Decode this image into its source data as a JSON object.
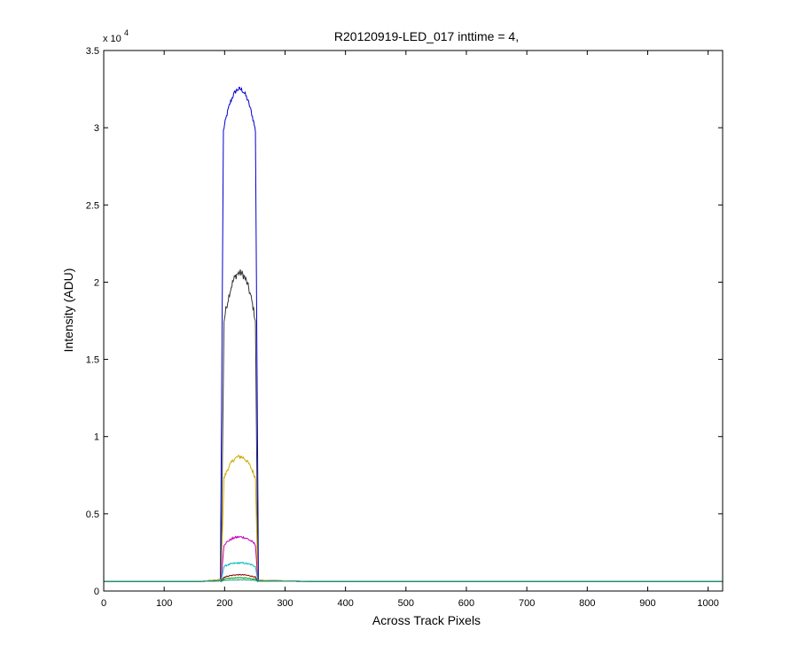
{
  "chart_data": {
    "type": "line",
    "title": "R20120919-LED_017 inttime = 4,",
    "xlabel": "Across Track Pixels",
    "ylabel": "Intensity (ADU)",
    "xlim": [
      0,
      1024
    ],
    "ylim": [
      0,
      35000
    ],
    "x_ticks": [
      0,
      100,
      200,
      300,
      400,
      500,
      600,
      700,
      800,
      900,
      1000
    ],
    "y_ticks": [
      0,
      5000,
      10000,
      15000,
      20000,
      25000,
      30000,
      35000
    ],
    "y_tick_labels": [
      "0",
      "0.5",
      "1",
      "1.5",
      "2",
      "2.5",
      "3",
      "3.5"
    ],
    "y_multiplier_base": "x 10",
    "y_multiplier_exp": "4",
    "grid": false,
    "legend": "none",
    "series": [
      {
        "color": "#0000cc",
        "baseline": 620,
        "rise_start": 193,
        "rise_end": 198,
        "fall_start": 251,
        "fall_end": 256,
        "top_edge": 29800,
        "top_peak": 32500,
        "noise": 150
      },
      {
        "color": "#333333",
        "baseline": 620,
        "rise_start": 194,
        "rise_end": 199,
        "fall_start": 251,
        "fall_end": 255,
        "top_edge": 17500,
        "top_peak": 20600,
        "noise": 250
      },
      {
        "color": "#ccaa00",
        "baseline": 620,
        "rise_start": 194,
        "rise_end": 199,
        "fall_start": 251,
        "fall_end": 255,
        "top_edge": 7300,
        "top_peak": 8700,
        "noise": 120
      },
      {
        "color": "#bb00bb",
        "baseline": 620,
        "rise_start": 194,
        "rise_end": 199,
        "fall_start": 251,
        "fall_end": 255,
        "top_edge": 3000,
        "top_peak": 3500,
        "noise": 70
      },
      {
        "color": "#00bbbb",
        "baseline": 620,
        "rise_start": 194,
        "rise_end": 199,
        "fall_start": 251,
        "fall_end": 255,
        "top_edge": 1600,
        "top_peak": 1820,
        "noise": 50
      },
      {
        "color": "#8b0000",
        "baseline": 620,
        "rise_start": 194,
        "rise_end": 199,
        "fall_start": 251,
        "fall_end": 255,
        "top_edge": 900,
        "top_peak": 1050,
        "noise": 30
      },
      {
        "color": "#00aa00",
        "baseline": 620,
        "rise_start": 194,
        "rise_end": 199,
        "fall_start": 251,
        "fall_end": 255,
        "top_edge": 780,
        "top_peak": 860,
        "noise": 25
      },
      {
        "color": "#1a9a9a",
        "baseline": 620,
        "rise_start": 194,
        "rise_end": 199,
        "fall_start": 251,
        "fall_end": 255,
        "top_edge": 690,
        "top_peak": 730,
        "noise": 20
      }
    ]
  }
}
